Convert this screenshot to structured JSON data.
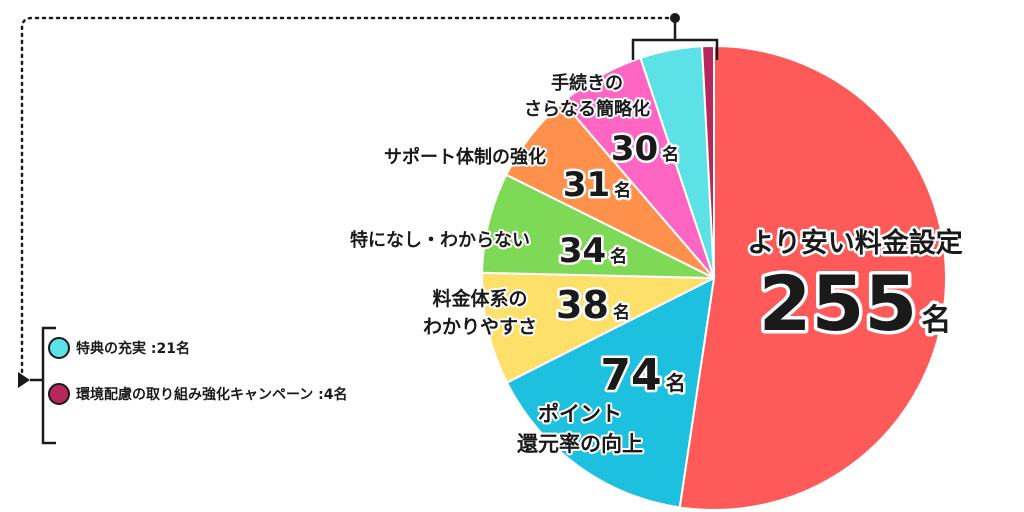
{
  "chart_data": {
    "type": "pie",
    "unit": "名",
    "slices": [
      {
        "label": "より安い料金設定",
        "value": 255,
        "color": "#ff5a5a"
      },
      {
        "label": "ポイント還元率の向上",
        "value": 74,
        "color": "#1ec0df"
      },
      {
        "label": "料金体系のわかりやすさ",
        "value": 38,
        "color": "#fde06a"
      },
      {
        "label": "特になし・わからない",
        "value": 34,
        "color": "#7ed957"
      },
      {
        "label": "サポート体制の強化",
        "value": 31,
        "color": "#ff914d"
      },
      {
        "label": "手続きのさらなる簡略化",
        "value": 30,
        "color": "#ff66c4"
      },
      {
        "label": "特典の充実",
        "value": 21,
        "color": "#5ce1e6"
      },
      {
        "label": "環境配慮の取り組み強化キャンペーン",
        "value": 4,
        "color": "#b8275a"
      }
    ],
    "slice_labels": [
      {
        "lines": [
          "より安い料金設定"
        ],
        "value_text": "255",
        "unit": "名"
      },
      {
        "lines": [
          "ポイント",
          "還元率の向上"
        ],
        "value_text": "74",
        "unit": "名"
      },
      {
        "lines": [
          "料金体系の",
          "わかりやすさ"
        ],
        "value_text": "38",
        "unit": "名"
      },
      {
        "lines": [
          "特になし・わからない"
        ],
        "value_text": "34",
        "unit": "名"
      },
      {
        "lines": [
          "サポート体制の強化"
        ],
        "value_text": "31",
        "unit": "名"
      },
      {
        "lines": [
          "手続きの",
          "さらなる簡略化"
        ],
        "value_text": "30",
        "unit": "名"
      }
    ],
    "legend": [
      {
        "text": "特典の充実 :21名",
        "color": "#5ce1e6"
      },
      {
        "text": "環境配慮の取り組み強化キャンペーン :4名",
        "color": "#b8275a"
      }
    ]
  }
}
